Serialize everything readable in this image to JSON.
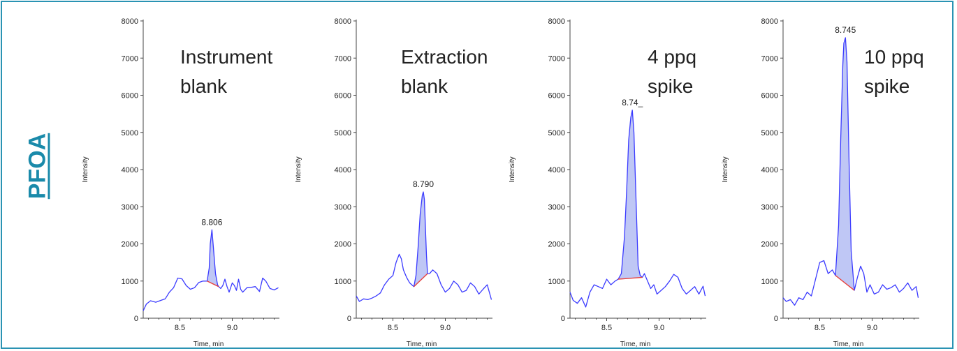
{
  "side_label": "PFOA",
  "colors": {
    "frame": "#2a93b3",
    "side_label": "#1a8aaa",
    "trace": "#3b3bff",
    "fill": "#aab4f2",
    "baseline": "#e8403a"
  },
  "chart_data": [
    {
      "type": "line",
      "annotation": [
        "Instrument",
        "blank"
      ],
      "xlabel": "Time, min",
      "ylabel": "Intensity",
      "xlim": [
        8.15,
        9.45
      ],
      "ylim": [
        0,
        8000
      ],
      "xticks": [
        "8.5",
        "9.0"
      ],
      "yticks": [
        "0",
        "1000",
        "2000",
        "3000",
        "4000",
        "5000",
        "6000",
        "7000",
        "8000"
      ],
      "grid": false,
      "peak": {
        "label": "8.806",
        "apex": [
          8.806,
          2380
        ],
        "start": [
          8.76,
          1000
        ],
        "end": [
          8.87,
          850
        ]
      },
      "x": [
        8.15,
        8.18,
        8.22,
        8.27,
        8.32,
        8.36,
        8.4,
        8.44,
        8.48,
        8.52,
        8.56,
        8.6,
        8.64,
        8.68,
        8.72,
        8.76,
        8.78,
        8.79,
        8.806,
        8.82,
        8.84,
        8.86,
        8.87,
        8.89,
        8.91,
        8.93,
        8.95,
        8.97,
        9.0,
        9.02,
        9.04,
        9.06,
        9.08,
        9.1,
        9.14,
        9.18,
        9.22,
        9.26,
        9.29,
        9.32,
        9.36,
        9.4,
        9.44
      ],
      "y": [
        200,
        380,
        470,
        430,
        480,
        520,
        700,
        820,
        1080,
        1060,
        880,
        780,
        820,
        960,
        1000,
        1000,
        1350,
        2000,
        2380,
        1900,
        1200,
        900,
        850,
        800,
        880,
        1050,
        850,
        700,
        950,
        880,
        750,
        1050,
        780,
        700,
        820,
        830,
        850,
        720,
        1080,
        1000,
        800,
        760,
        820
      ]
    },
    {
      "type": "line",
      "annotation": [
        "Extraction",
        "blank"
      ],
      "xlabel": "Time, min",
      "ylabel": "Intensity",
      "xlim": [
        8.15,
        9.45
      ],
      "ylim": [
        0,
        8000
      ],
      "xticks": [
        "8.5",
        "9.0"
      ],
      "yticks": [
        "0",
        "1000",
        "2000",
        "3000",
        "4000",
        "5000",
        "6000",
        "7000",
        "8000"
      ],
      "grid": false,
      "peak": {
        "label": "8.790",
        "apex": [
          8.79,
          3400
        ],
        "start": [
          8.7,
          850
        ],
        "end": [
          8.83,
          1200
        ]
      },
      "x": [
        8.15,
        8.18,
        8.22,
        8.26,
        8.3,
        8.34,
        8.38,
        8.42,
        8.46,
        8.5,
        8.53,
        8.56,
        8.58,
        8.6,
        8.63,
        8.66,
        8.68,
        8.7,
        8.72,
        8.74,
        8.76,
        8.78,
        8.79,
        8.8,
        8.82,
        8.83,
        8.85,
        8.88,
        8.92,
        8.96,
        9.0,
        9.04,
        9.08,
        9.12,
        9.16,
        9.2,
        9.24,
        9.28,
        9.32,
        9.36,
        9.4,
        9.44
      ],
      "y": [
        600,
        450,
        520,
        500,
        540,
        600,
        680,
        900,
        1050,
        1150,
        1500,
        1720,
        1600,
        1300,
        1100,
        950,
        900,
        850,
        1150,
        1900,
        2800,
        3300,
        3400,
        3200,
        1700,
        1200,
        1200,
        1300,
        1200,
        900,
        700,
        800,
        1000,
        900,
        700,
        750,
        950,
        850,
        650,
        780,
        900,
        500
      ]
    },
    {
      "type": "line",
      "annotation": [
        "4 ppq",
        "spike"
      ],
      "xlabel": "Time, min",
      "ylabel": "Intensity",
      "xlim": [
        8.15,
        9.45
      ],
      "ylim": [
        0,
        8000
      ],
      "xticks": [
        "8.5",
        "9.0"
      ],
      "yticks": [
        "0",
        "1000",
        "2000",
        "3000",
        "4000",
        "5000",
        "6000",
        "7000",
        "8000"
      ],
      "grid": false,
      "peak": {
        "label": "8.74_",
        "apex": [
          8.745,
          5600
        ],
        "start": [
          8.61,
          1050
        ],
        "end": [
          8.84,
          1100
        ]
      },
      "x": [
        8.15,
        8.18,
        8.22,
        8.26,
        8.3,
        8.34,
        8.38,
        8.42,
        8.46,
        8.5,
        8.54,
        8.58,
        8.61,
        8.64,
        8.67,
        8.69,
        8.71,
        8.73,
        8.745,
        8.76,
        8.78,
        8.8,
        8.82,
        8.84,
        8.86,
        8.89,
        8.92,
        8.95,
        8.98,
        9.02,
        9.06,
        9.1,
        9.14,
        9.18,
        9.22,
        9.26,
        9.3,
        9.34,
        9.38,
        9.42,
        9.44
      ],
      "y": [
        700,
        480,
        400,
        550,
        300,
        700,
        900,
        850,
        800,
        1050,
        900,
        1000,
        1050,
        1200,
        2200,
        3400,
        4800,
        5400,
        5600,
        5000,
        3200,
        1400,
        1150,
        1100,
        1200,
        1000,
        800,
        900,
        650,
        750,
        850,
        1000,
        1180,
        1100,
        800,
        650,
        750,
        850,
        650,
        860,
        600
      ]
    },
    {
      "type": "line",
      "annotation": [
        "10 ppq",
        "spike"
      ],
      "xlabel": "Time, min",
      "ylabel": "Intensity",
      "xlim": [
        8.15,
        9.45
      ],
      "ylim": [
        0,
        8000
      ],
      "xticks": [
        "8.5",
        "9.0"
      ],
      "yticks": [
        "0",
        "1000",
        "2000",
        "3000",
        "4000",
        "5000",
        "6000",
        "7000",
        "8000"
      ],
      "grid": false,
      "peak": {
        "label": "8.745",
        "apex": [
          8.745,
          7550
        ],
        "start": [
          8.65,
          1150
        ],
        "end": [
          8.83,
          750
        ]
      },
      "x": [
        8.15,
        8.18,
        8.22,
        8.26,
        8.3,
        8.34,
        8.38,
        8.42,
        8.46,
        8.5,
        8.54,
        8.58,
        8.62,
        8.65,
        8.68,
        8.7,
        8.72,
        8.73,
        8.745,
        8.76,
        8.78,
        8.8,
        8.83,
        8.86,
        8.89,
        8.92,
        8.95,
        8.98,
        9.02,
        9.06,
        9.1,
        9.14,
        9.18,
        9.22,
        9.26,
        9.3,
        9.34,
        9.38,
        9.42,
        9.44
      ],
      "y": [
        550,
        450,
        500,
        350,
        550,
        500,
        700,
        600,
        1050,
        1500,
        1550,
        1200,
        1300,
        1150,
        2500,
        4800,
        6800,
        7400,
        7550,
        6900,
        4200,
        1800,
        750,
        1100,
        1400,
        1200,
        700,
        900,
        650,
        700,
        900,
        780,
        820,
        900,
        700,
        800,
        950,
        750,
        850,
        550
      ]
    }
  ]
}
